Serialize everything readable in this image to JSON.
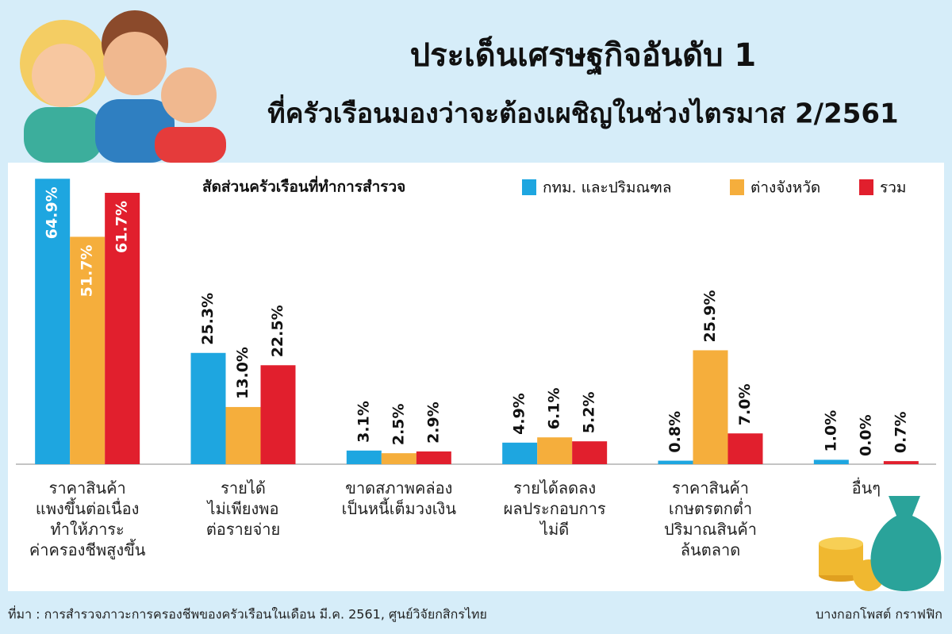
{
  "chart_data": {
    "type": "bar",
    "title": "ประเด็นเศรษฐกิจอันดับ 1",
    "subtitle": "ที่ครัวเรือนมองว่าจะต้องเผชิญในช่วงไตรมาส 2/2561",
    "legend_title": "สัดส่วนครัวเรือนที่ทำการสำรวจ",
    "categories": [
      "ราคาสินค้า\nแพงขึ้นต่อเนื่อง\nทำให้ภาระ\nค่าครองชีพสูงขึ้น",
      "รายได้\nไม่เพียงพอ\nต่อรายจ่าย",
      "ขาดสภาพคล่อง\nเป็นหนี้เต็มวงเงิน",
      "รายได้ลดลง\nผลประกอบการ\nไม่ดี",
      "ราคาสินค้า\nเกษตรตกต่ำ\nปริมาณสินค้า\nล้นตลาด",
      "อื่นๆ"
    ],
    "series": [
      {
        "name": "กทม. และปริมณฑล",
        "color": "#1ea6e0",
        "values": [
          64.9,
          25.3,
          3.1,
          4.9,
          0.8,
          1.0
        ],
        "value_labels": [
          "64.9%",
          "25.3%",
          "3.1%",
          "4.9%",
          "0.8%",
          "1.0%"
        ]
      },
      {
        "name": "ต่างจังหวัด",
        "color": "#f5ae3c",
        "values": [
          51.7,
          13.0,
          2.5,
          6.1,
          25.9,
          0.0
        ],
        "value_labels": [
          "51.7%",
          "13.0%",
          "2.5%",
          "6.1%",
          "25.9%",
          "0.0%"
        ]
      },
      {
        "name": "รวม",
        "color": "#e11f2d",
        "values": [
          61.7,
          22.5,
          2.9,
          5.2,
          7.0,
          0.7
        ],
        "value_labels": [
          "61.7%",
          "22.5%",
          "2.9%",
          "5.2%",
          "7.0%",
          "0.7%"
        ]
      }
    ],
    "ylim": [
      0,
      70
    ],
    "source": "ที่มา : การสำรวจภาวะการครองชีพของครัวเรือนในเดือน มี.ค. 2561, ศูนย์วิจัยกสิกรไทย",
    "credit": "บางกอกโพสต์ กราฟฟิก"
  }
}
